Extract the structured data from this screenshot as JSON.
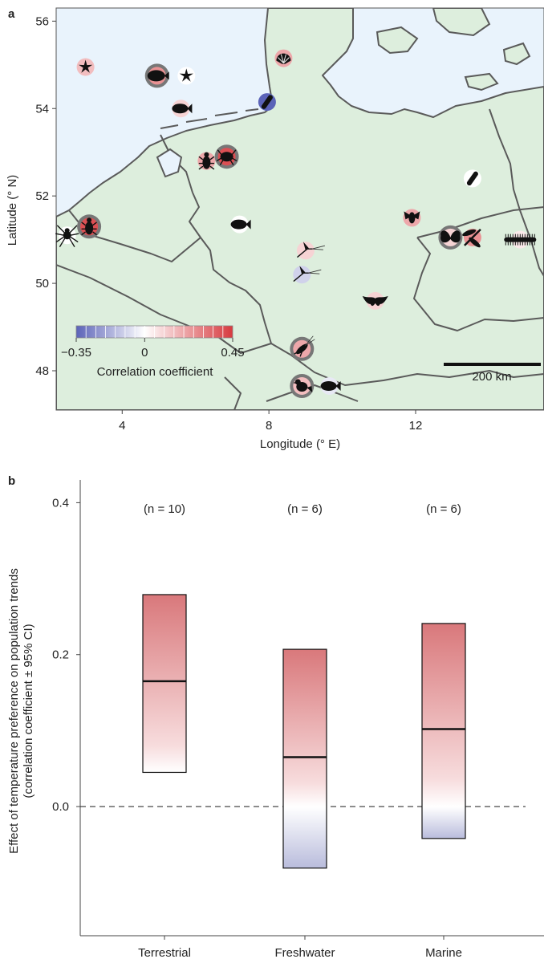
{
  "chart_data": [
    {
      "type": "scatter",
      "panel_label": "a",
      "title": "",
      "xlabel": "Longitude (° E)",
      "ylabel": "Latitude (° N)",
      "xlim": [
        2.2,
        15.5
      ],
      "ylim": [
        47.1,
        56.3
      ],
      "x_ticks": [
        {
          "value": 4,
          "label": "4"
        },
        {
          "value": 8,
          "label": "8"
        },
        {
          "value": 12,
          "label": "12"
        }
      ],
      "y_ticks": [
        {
          "value": 48,
          "label": "48"
        },
        {
          "value": 50,
          "label": "50"
        },
        {
          "value": 52,
          "label": "52"
        },
        {
          "value": 54,
          "label": "54"
        },
        {
          "value": 56,
          "label": "56"
        }
      ],
      "points": [
        {
          "taxon": "starfish",
          "lon": 3.0,
          "lat": 54.95,
          "r": 0.15
        },
        {
          "taxon": "flatfish",
          "lon": 4.95,
          "lat": 54.75,
          "r": 0.25,
          "significant": true
        },
        {
          "taxon": "starfish",
          "lon": 5.75,
          "lat": 54.75,
          "r": 0.0
        },
        {
          "taxon": "fish",
          "lon": 5.6,
          "lat": 54.0,
          "r": 0.1
        },
        {
          "taxon": "shell",
          "lon": 8.4,
          "lat": 55.15,
          "r": 0.2
        },
        {
          "taxon": "worm",
          "lon": 7.95,
          "lat": 54.15,
          "r": -0.35
        },
        {
          "taxon": "beetle",
          "lon": 6.3,
          "lat": 52.8,
          "r": 0.2
        },
        {
          "taxon": "crab",
          "lon": 6.85,
          "lat": 52.9,
          "r": 0.4,
          "significant": true
        },
        {
          "taxon": "spider",
          "lon": 2.5,
          "lat": 51.1,
          "r": 0.0
        },
        {
          "taxon": "beetle",
          "lon": 3.1,
          "lat": 51.3,
          "r": 0.4,
          "significant": true
        },
        {
          "taxon": "fish",
          "lon": 7.2,
          "lat": 51.35,
          "r": 0.0
        },
        {
          "taxon": "worm",
          "lon": 13.55,
          "lat": 52.4,
          "r": 0.0
        },
        {
          "taxon": "fly",
          "lon": 11.9,
          "lat": 51.5,
          "r": 0.2
        },
        {
          "taxon": "butterfly",
          "lon": 12.95,
          "lat": 51.05,
          "r": 0.1,
          "significant": true
        },
        {
          "taxon": "dragonfly",
          "lon": 13.55,
          "lat": 51.05,
          "r": 0.25
        },
        {
          "taxon": "millipede",
          "lon": 14.85,
          "lat": 51.0,
          "r": 0.05
        },
        {
          "taxon": "mayfly",
          "lon": 9.0,
          "lat": 50.75,
          "r": 0.1
        },
        {
          "taxon": "mayfly",
          "lon": 8.9,
          "lat": 50.2,
          "r": -0.1
        },
        {
          "taxon": "bat",
          "lon": 10.9,
          "lat": 49.6,
          "r": 0.1
        },
        {
          "taxon": "cricket",
          "lon": 8.9,
          "lat": 48.5,
          "r": 0.2,
          "significant": true
        },
        {
          "taxon": "bird",
          "lon": 8.9,
          "lat": 47.65,
          "r": 0.15,
          "significant": true
        },
        {
          "taxon": "fish",
          "lon": 9.65,
          "lat": 47.65,
          "r": -0.05
        }
      ],
      "colorbar": {
        "min": -0.35,
        "max": 0.45,
        "ticks": [
          {
            "value": -0.35,
            "label": "−0.35"
          },
          {
            "value": 0,
            "label": "0"
          },
          {
            "value": 0.45,
            "label": "0.45"
          }
        ],
        "label": "Correlation coefficient",
        "negative_color": "#5b63b8",
        "positive_color": "#d73a3f"
      },
      "scalebar_label": "200 km",
      "colors": {
        "sea": "#e9f3fc",
        "land": "#ddeedd",
        "border": "#5a5a5a"
      }
    },
    {
      "type": "bar",
      "panel_label": "b",
      "title": "",
      "xlabel": "",
      "ylabel_line1": "Effect of temperature preference on population trends",
      "ylabel_line2": "(correlation coefficient ± 95% CI)",
      "categories": [
        "Terrestrial",
        "Freshwater",
        "Marine"
      ],
      "estimate": [
        0.165,
        0.065,
        0.102
      ],
      "ci_lower": [
        0.045,
        -0.081,
        -0.042
      ],
      "ci_upper": [
        0.279,
        0.207,
        0.241
      ],
      "n": [
        10,
        6,
        6
      ],
      "n_labels": [
        "(n = 10)",
        "(n = 6)",
        "(n = 6)"
      ],
      "ylim": [
        -0.17,
        0.43
      ],
      "y_ticks": [
        {
          "value": 0.0,
          "label": "0.0"
        },
        {
          "value": 0.2,
          "label": "0.2"
        },
        {
          "value": 0.4,
          "label": "0.4"
        }
      ],
      "reference_line": 0,
      "colors": {
        "positive": "#d9787b",
        "negative": "#b9bcdc"
      }
    }
  ]
}
